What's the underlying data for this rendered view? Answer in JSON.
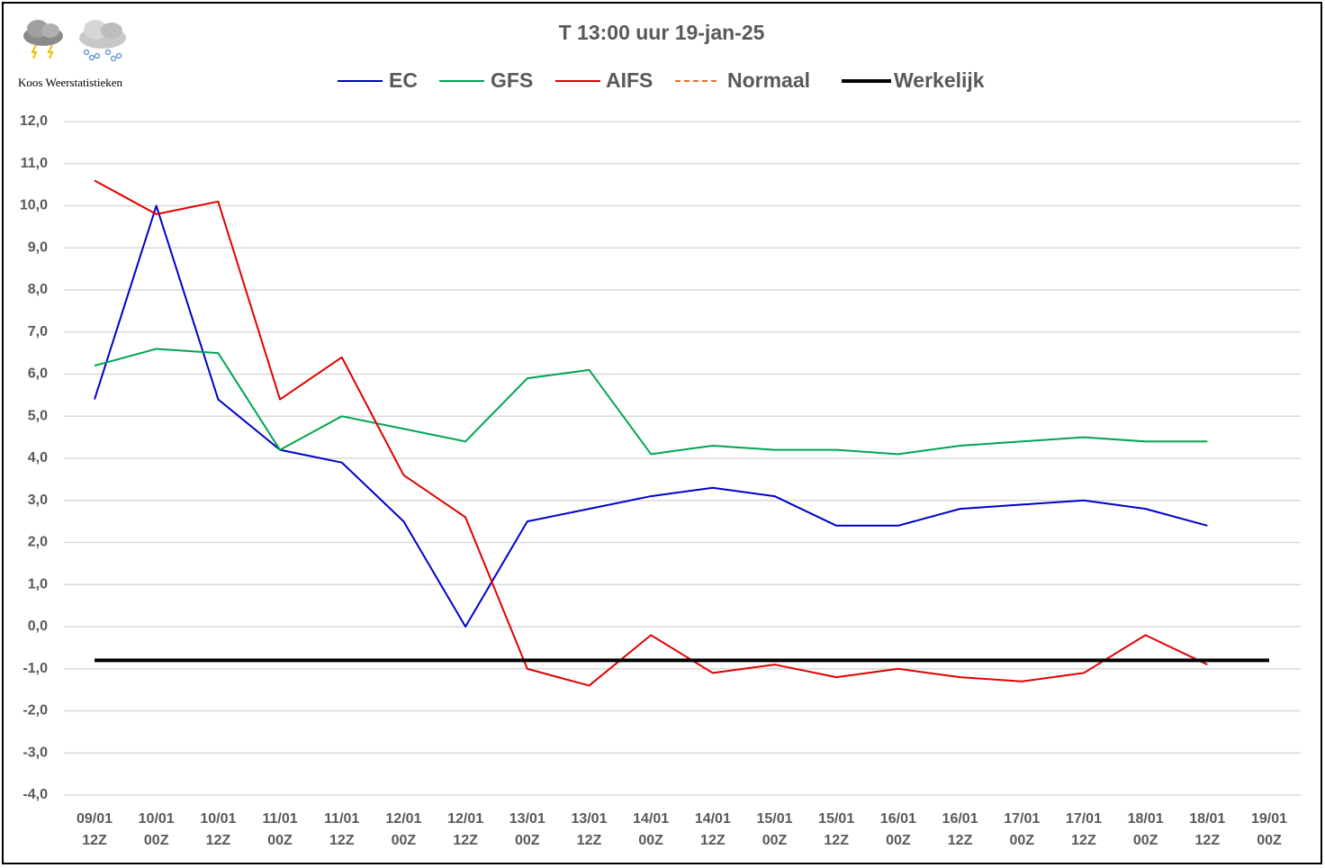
{
  "chart_data": {
    "type": "line",
    "title": "T 13:00 uur 19-jan-25",
    "source": "Koos Weerstatistieken",
    "categories": [
      [
        "09/01",
        "12Z"
      ],
      [
        "10/01",
        "00Z"
      ],
      [
        "10/01",
        "12Z"
      ],
      [
        "11/01",
        "00Z"
      ],
      [
        "11/01",
        "12Z"
      ],
      [
        "12/01",
        "00Z"
      ],
      [
        "12/01",
        "12Z"
      ],
      [
        "13/01",
        "00Z"
      ],
      [
        "13/01",
        "12Z"
      ],
      [
        "14/01",
        "00Z"
      ],
      [
        "14/01",
        "12Z"
      ],
      [
        "15/01",
        "00Z"
      ],
      [
        "15/01",
        "12Z"
      ],
      [
        "16/01",
        "00Z"
      ],
      [
        "16/01",
        "12Z"
      ],
      [
        "17/01",
        "00Z"
      ],
      [
        "17/01",
        "12Z"
      ],
      [
        "18/01",
        "00Z"
      ],
      [
        "18/01",
        "12Z"
      ],
      [
        "19/01",
        "00Z"
      ]
    ],
    "series": [
      {
        "name": "EC",
        "color": "#0000cc",
        "values": [
          5.4,
          10.0,
          5.4,
          4.2,
          3.9,
          2.5,
          0.0,
          2.5,
          2.8,
          3.1,
          3.3,
          3.1,
          2.4,
          2.4,
          2.8,
          2.9,
          3.0,
          2.8,
          2.4,
          null
        ]
      },
      {
        "name": "GFS",
        "color": "#00a550",
        "values": [
          6.2,
          6.6,
          6.5,
          4.2,
          5.0,
          4.7,
          4.4,
          5.9,
          6.1,
          4.1,
          4.3,
          4.2,
          4.2,
          4.1,
          4.3,
          4.4,
          4.5,
          4.4,
          4.4,
          null
        ]
      },
      {
        "name": "AIFS",
        "color": "#e00000",
        "values": [
          10.6,
          9.8,
          10.1,
          5.4,
          6.4,
          3.6,
          2.6,
          -1.0,
          -1.4,
          -0.2,
          -1.1,
          -0.9,
          -1.2,
          -1.0,
          -1.2,
          -1.3,
          -1.1,
          -0.2,
          -0.9,
          null
        ]
      },
      {
        "name": "Normaal",
        "color": "#e8702a",
        "dashed": true,
        "values": [
          null,
          null,
          null,
          null,
          null,
          null,
          null,
          null,
          null,
          null,
          null,
          null,
          null,
          null,
          null,
          null,
          null,
          null,
          null,
          null
        ]
      },
      {
        "name": "Werkelijk",
        "color": "#000000",
        "linewidth": 4,
        "values": [
          -0.8,
          -0.8,
          -0.8,
          -0.8,
          -0.8,
          -0.8,
          -0.8,
          -0.8,
          -0.8,
          -0.8,
          -0.8,
          -0.8,
          -0.8,
          -0.8,
          -0.8,
          -0.8,
          -0.8,
          -0.8,
          -0.8,
          -0.8
        ]
      }
    ],
    "ylim": [
      -4,
      12
    ],
    "yticks": [
      {
        "value": -4,
        "label": "-4,0"
      },
      {
        "value": -3,
        "label": "-3,0"
      },
      {
        "value": -2,
        "label": "-2,0"
      },
      {
        "value": -1,
        "label": "-1,0"
      },
      {
        "value": 0,
        "label": "0,0"
      },
      {
        "value": 1,
        "label": "1,0"
      },
      {
        "value": 2,
        "label": "2,0"
      },
      {
        "value": 3,
        "label": "3,0"
      },
      {
        "value": 4,
        "label": "4,0"
      },
      {
        "value": 5,
        "label": "5,0"
      },
      {
        "value": 6,
        "label": "6,0"
      },
      {
        "value": 7,
        "label": "7,0"
      },
      {
        "value": 8,
        "label": "8,0"
      },
      {
        "value": 9,
        "label": "9,0"
      },
      {
        "value": 10,
        "label": "10,0"
      },
      {
        "value": 11,
        "label": "11,0"
      },
      {
        "value": 12,
        "label": "12,0"
      }
    ],
    "grid": true
  }
}
